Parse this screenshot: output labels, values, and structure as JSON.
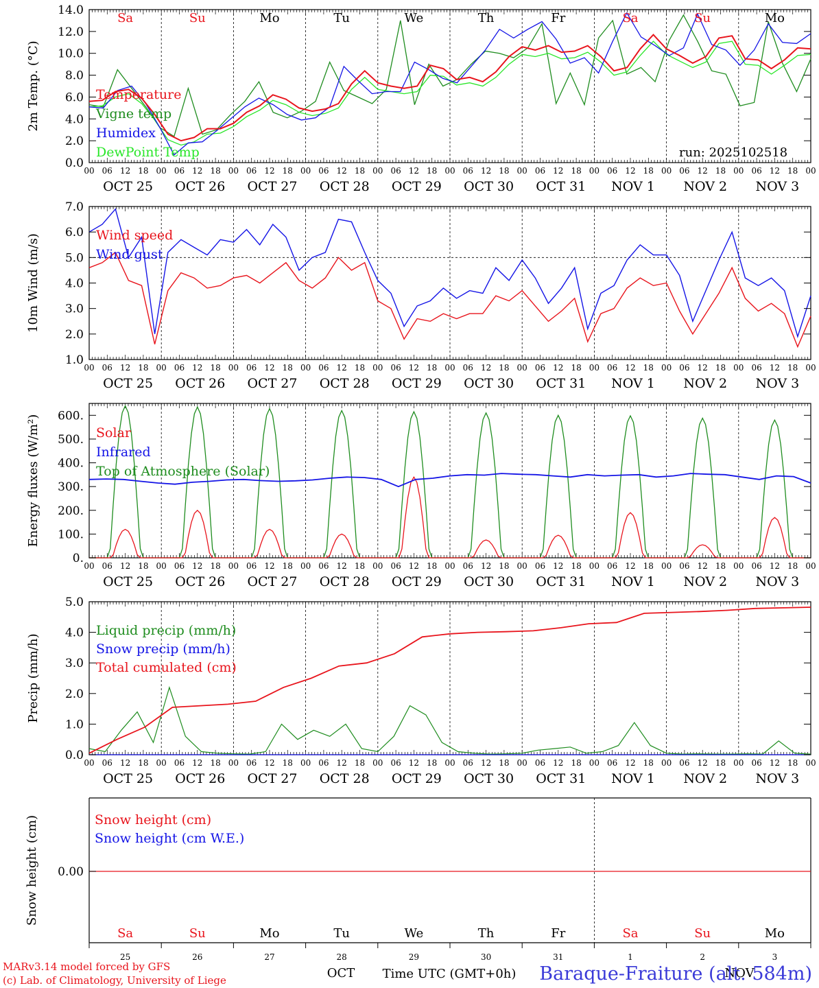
{
  "run_label": "run: 2025102518",
  "weekdays": [
    "Sa",
    "Su",
    "Mo",
    "Tu",
    "We",
    "Th",
    "Fr",
    "Sa",
    "Su",
    "Mo"
  ],
  "weekend_color": "#e8141c",
  "weekday_color": "#000000",
  "hour_ticks": [
    "00",
    "06",
    "12",
    "18"
  ],
  "day_labels": [
    "OCT 25",
    "OCT 26",
    "OCT 27",
    "OCT 28",
    "OCT 29",
    "OCT 30",
    "OCT 31",
    "NOV  1",
    "NOV  2",
    "NOV  3"
  ],
  "bottom_day_numbers": [
    "25",
    "26",
    "27",
    "28",
    "29",
    "30",
    "31",
    "1",
    "2",
    "3"
  ],
  "bottom_month_labels": [
    "OCT",
    "NOV"
  ],
  "axis_title": "Time UTC (GMT+0h)",
  "credit_line1": "MARv3.14 model forced by GFS",
  "credit_line2": "(c) Lab. of Climatology, University of Liege",
  "station_title": "Baraque-Fraiture (alt. 584m)",
  "colors": {
    "red": "#e8141c",
    "green": "#1e8c1e",
    "blue": "#1414e6",
    "light_green": "#28e628"
  },
  "chart_data": [
    {
      "type": "line",
      "ylabel": "2m Temp. (°C)",
      "ylim": [
        0,
        14
      ],
      "yticks": [
        "0.0",
        "2.0",
        "4.0",
        "6.0",
        "8.0",
        "10.0",
        "12.0",
        "14.0"
      ],
      "x_hours_step": 6,
      "series": [
        {
          "name": "Temperature",
          "color": "red",
          "values": [
            5.6,
            5.7,
            6.5,
            6.7,
            5.9,
            4.4,
            2.6,
            2.0,
            2.3,
            3.1,
            3.1,
            3.6,
            4.6,
            5.2,
            6.2,
            5.8,
            5.0,
            4.7,
            4.9,
            5.4,
            7.2,
            8.4,
            7.3,
            7.0,
            6.8,
            7.0,
            8.9,
            8.6,
            7.6,
            7.8,
            7.4,
            8.3,
            9.7,
            10.6,
            10.3,
            10.7,
            10.1,
            10.2,
            10.7,
            9.7,
            8.4,
            8.7,
            10.4,
            11.7,
            10.4,
            9.8,
            9.1,
            9.7,
            11.4,
            11.6,
            9.5,
            9.4,
            8.6,
            9.4,
            10.5,
            10.4
          ]
        },
        {
          "name": "Vigne temp",
          "color": "green",
          "values": [
            5.3,
            5.1,
            8.5,
            6.8,
            5.1,
            3.2,
            2.4,
            6.8,
            2.6,
            3.0,
            4.4,
            5.6,
            7.4,
            4.6,
            4.1,
            4.7,
            5.6,
            9.2,
            6.6,
            6.0,
            5.4,
            6.7,
            13.0,
            5.3,
            9.0,
            7.0,
            7.6,
            9.0,
            10.2,
            10.0,
            9.6,
            10.5,
            12.7,
            5.4,
            8.2,
            5.3,
            11.4,
            13.0,
            8.1,
            8.7,
            7.4,
            11.2,
            13.5,
            11.1,
            8.4,
            8.1,
            5.2,
            5.5,
            12.9,
            9.1,
            6.5,
            9.5
          ]
        },
        {
          "name": "Humidex",
          "color": "blue",
          "values": [
            5.1,
            5.0,
            6.6,
            7.0,
            5.4,
            3.2,
            0.7,
            1.8,
            1.9,
            2.9,
            4.0,
            5.1,
            5.9,
            5.3,
            4.4,
            3.9,
            4.1,
            5.1,
            8.8,
            7.5,
            6.3,
            6.5,
            6.5,
            9.2,
            8.5,
            7.7,
            7.3,
            8.8,
            10.3,
            12.2,
            11.4,
            12.2,
            12.9,
            11.3,
            9.1,
            9.6,
            8.2,
            11.1,
            13.7,
            11.5,
            10.7,
            9.8,
            10.5,
            13.6,
            10.8,
            10.3,
            8.9,
            10.3,
            12.7,
            11.0,
            10.9,
            11.8
          ]
        },
        {
          "name": "DewPoint Temp",
          "color": "light_green",
          "values": [
            5.1,
            5.2,
            6.0,
            6.3,
            5.4,
            3.9,
            2.1,
            1.6,
            1.9,
            2.6,
            2.7,
            3.3,
            4.2,
            4.8,
            5.7,
            5.3,
            4.6,
            4.3,
            4.5,
            5.0,
            6.7,
            7.8,
            6.7,
            6.5,
            6.3,
            6.5,
            8.0,
            7.9,
            7.1,
            7.3,
            7.0,
            7.8,
            9.0,
            9.9,
            9.7,
            10.0,
            9.5,
            9.6,
            10.1,
            9.2,
            8.0,
            8.3,
            9.8,
            11.1,
            9.9,
            9.3,
            8.7,
            9.2,
            10.9,
            11.1,
            9.0,
            8.9,
            8.1,
            8.9,
            9.8,
            9.9
          ]
        }
      ]
    },
    {
      "type": "line",
      "ylabel": "10m Wind (m/s)",
      "ylim": [
        1,
        7
      ],
      "yticks": [
        "1.0",
        "2.0",
        "3.0",
        "4.0",
        "5.0",
        "6.0",
        "7.0"
      ],
      "reference_line": 5.0,
      "series": [
        {
          "name": "Wind speed",
          "color": "red",
          "values": [
            4.6,
            4.8,
            5.2,
            4.1,
            3.9,
            1.6,
            3.7,
            4.4,
            4.2,
            3.8,
            3.9,
            4.2,
            4.3,
            4.0,
            4.4,
            4.8,
            4.1,
            3.8,
            4.2,
            5.0,
            4.5,
            4.8,
            3.3,
            3.0,
            1.8,
            2.6,
            2.5,
            2.8,
            2.6,
            2.8,
            2.8,
            3.5,
            3.3,
            3.7,
            3.1,
            2.5,
            2.9,
            3.4,
            1.7,
            2.8,
            3.0,
            3.8,
            4.2,
            3.9,
            4.0,
            2.9,
            2.0,
            2.8,
            3.6,
            4.6,
            3.4,
            2.9,
            3.2,
            2.8,
            1.5,
            2.7
          ]
        },
        {
          "name": "Wind gust",
          "color": "blue",
          "values": [
            6.0,
            6.3,
            6.9,
            5.0,
            5.8,
            2.0,
            5.2,
            5.7,
            5.4,
            5.1,
            5.7,
            5.6,
            6.1,
            5.5,
            6.3,
            5.8,
            4.5,
            5.0,
            5.2,
            6.5,
            6.4,
            5.2,
            4.1,
            3.6,
            2.3,
            3.1,
            3.3,
            3.8,
            3.4,
            3.7,
            3.6,
            4.6,
            4.1,
            4.9,
            4.2,
            3.2,
            3.8,
            4.6,
            2.2,
            3.6,
            3.9,
            4.9,
            5.5,
            5.1,
            5.1,
            4.3,
            2.5,
            3.7,
            4.9,
            6.0,
            4.2,
            3.9,
            4.2,
            3.7,
            1.9,
            3.5
          ]
        }
      ]
    },
    {
      "type": "line",
      "ylabel": "Energy fluxes (W/m²)",
      "ylim": [
        0,
        650
      ],
      "yticks": [
        "0.",
        "100.",
        "200.",
        "300.",
        "400.",
        "500.",
        "600."
      ],
      "series": [
        {
          "name": "Solar",
          "color": "red",
          "peaks": [
            120,
            200,
            120,
            100,
            340,
            75,
            95,
            190,
            55,
            170
          ]
        },
        {
          "name": "Infrared",
          "color": "blue",
          "values": [
            330,
            332,
            330,
            322,
            315,
            310,
            318,
            322,
            328,
            330,
            325,
            322,
            324,
            328,
            335,
            340,
            338,
            330,
            300,
            330,
            335,
            345,
            350,
            348,
            355,
            352,
            350,
            345,
            340,
            350,
            345,
            348,
            350,
            340,
            345,
            355,
            352,
            350,
            340,
            330,
            345,
            342,
            315
          ]
        },
        {
          "name": "Top of Atmosphere (Solar)",
          "color": "green",
          "peaks": [
            640,
            635,
            628,
            620,
            615,
            610,
            600,
            598,
            588,
            580
          ]
        }
      ]
    },
    {
      "type": "line",
      "ylabel": "Precip (mm/h)",
      "ylim": [
        0,
        5
      ],
      "yticks": [
        "0.0",
        "1.0",
        "2.0",
        "3.0",
        "4.0",
        "5.0"
      ],
      "series": [
        {
          "name": "Liquid precip (mm/h)",
          "color": "green",
          "values": [
            0.2,
            0.1,
            0.8,
            1.4,
            0.4,
            2.2,
            0.6,
            0.1,
            0.05,
            0.03,
            0.02,
            0.1,
            1.0,
            0.5,
            0.8,
            0.6,
            1.0,
            0.2,
            0.1,
            0.6,
            1.6,
            1.3,
            0.4,
            0.1,
            0.05,
            0.02,
            0.03,
            0.05,
            0.15,
            0.2,
            0.25,
            0.05,
            0.1,
            0.3,
            1.05,
            0.3,
            0.05,
            0.02,
            0.03,
            0.02,
            0.02,
            0.03,
            0.02,
            0.45,
            0.05,
            0.02
          ]
        },
        {
          "name": "Snow precip (mm/h)",
          "color": "blue",
          "values": [
            0,
            0,
            0,
            0,
            0,
            0,
            0,
            0,
            0,
            0
          ]
        },
        {
          "name": "Total cumulated (cm)",
          "color": "red",
          "values": [
            0.05,
            0.5,
            0.9,
            1.55,
            1.6,
            1.65,
            1.75,
            2.2,
            2.5,
            2.9,
            3.0,
            3.3,
            3.85,
            3.95,
            4.0,
            4.02,
            4.05,
            4.15,
            4.28,
            4.32,
            4.62,
            4.65,
            4.68,
            4.72,
            4.78,
            4.8,
            4.82
          ]
        }
      ]
    },
    {
      "type": "line",
      "ylabel": "Snow height (cm)",
      "yticks": [
        "0.00"
      ],
      "series": [
        {
          "name": "Snow height (cm)",
          "color": "red",
          "values": [
            0,
            0
          ]
        },
        {
          "name": "Snow height (cm W.E.)",
          "color": "blue",
          "values": [
            0,
            0
          ]
        }
      ]
    }
  ]
}
